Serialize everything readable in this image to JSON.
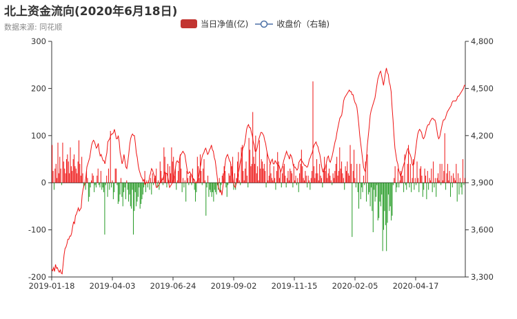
{
  "header": {
    "title": "北上资金流向(2020年6月18日)",
    "subtitle": "数据来源: 同花顺"
  },
  "legend": [
    {
      "label": "当日净值(亿)",
      "color": "#c23531",
      "kind": "bar"
    },
    {
      "label": "收盘价（右轴)",
      "color": "#4a6fa5",
      "kind": "line"
    }
  ],
  "chart_data": {
    "type": "bar+line",
    "title": "北上资金流向(2020年6月18日)",
    "x_tick_labels": [
      "2019-01-18",
      "2019-04-03",
      "2019-06-24",
      "2019-09-02",
      "2019-11-15",
      "2020-02-05",
      "2020-04-17"
    ],
    "x_range": [
      "2019-01-18",
      "2020-06-18"
    ],
    "left_axis": {
      "ylim": [
        -200,
        300
      ],
      "ticks": [
        -200,
        -100,
        0,
        100,
        200,
        300
      ]
    },
    "right_axis": {
      "ylim": [
        3300,
        4800
      ],
      "ticks": [
        "3,300",
        "3,600",
        "3,900",
        "4,200",
        "4,500",
        "4,800"
      ]
    },
    "positive_color": "#ee1111",
    "negative_color": "#229922",
    "close_line_color": "#ee1111",
    "series": [
      {
        "name": "当日净值(亿)",
        "axis": "left",
        "values": [
          80,
          25,
          -15,
          30,
          40,
          10,
          85,
          20,
          55,
          30,
          -5,
          85,
          45,
          30,
          20,
          50,
          60,
          45,
          20,
          75,
          35,
          25,
          50,
          60,
          35,
          30,
          20,
          45,
          90,
          40,
          15,
          55,
          20,
          -10,
          -5,
          -15,
          25,
          10,
          -40,
          -30,
          -10,
          5,
          20,
          15,
          -20,
          -5,
          -10,
          15,
          30,
          -5,
          -10,
          25,
          -15,
          -10,
          -20,
          -110,
          -5,
          15,
          -30,
          30,
          -15,
          110,
          -10,
          5,
          -35,
          -20,
          30,
          30,
          -5,
          -45,
          -40,
          -25,
          10,
          -30,
          -50,
          -20,
          -10,
          -35,
          5,
          -15,
          -40,
          -25,
          -50,
          -55,
          -15,
          -110,
          -60,
          -20,
          -50,
          -40,
          -30,
          -10,
          -55,
          -45,
          -35,
          -25,
          -10,
          25,
          -20,
          5,
          -10,
          5,
          -15,
          10,
          -25,
          20,
          -5,
          10,
          15,
          30,
          -10,
          5,
          -15,
          45,
          25,
          10,
          -5,
          75,
          55,
          20,
          -10,
          40,
          5,
          35,
          20,
          75,
          45,
          55,
          15,
          30,
          -15,
          5,
          25,
          45,
          60,
          30,
          -20,
          10,
          -10,
          5,
          -40,
          25,
          10,
          -5,
          15,
          20,
          -5,
          30,
          10,
          -15,
          -40,
          -20,
          55,
          35,
          10,
          60,
          25,
          -5,
          30,
          50,
          5,
          -70,
          -10,
          15,
          -30,
          -15,
          -20,
          -30,
          -20,
          -40,
          -15,
          -20,
          -25,
          -5,
          -15,
          10,
          -20,
          -5,
          15,
          20,
          35,
          25,
          -10,
          -30,
          -5,
          20,
          15,
          40,
          35,
          55,
          -15,
          20,
          -15,
          10,
          45,
          65,
          5,
          -5,
          75,
          80,
          25,
          5,
          30,
          45,
          15,
          -10,
          95,
          70,
          35,
          40,
          150,
          55,
          40,
          100,
          20,
          35,
          5,
          90,
          30,
          50,
          45,
          30,
          40,
          25,
          -10,
          65,
          5,
          15,
          40,
          20,
          10,
          5,
          35,
          10,
          -15,
          25,
          65,
          45,
          10,
          25,
          -10,
          20,
          35,
          40,
          15,
          -10,
          10,
          25,
          5,
          30,
          25,
          20,
          -10,
          40,
          5,
          15,
          -5,
          10,
          -20,
          20,
          40,
          70,
          35,
          10,
          5,
          25,
          15,
          -10,
          15,
          5,
          -15,
          10,
          25,
          215,
          35,
          10,
          20,
          50,
          20,
          5,
          40,
          15,
          10,
          -10,
          30,
          55,
          25,
          40,
          10,
          20,
          30,
          15,
          5,
          -5,
          20,
          10,
          25,
          40,
          55,
          15,
          25,
          75,
          30,
          45,
          20,
          10,
          -15,
          35,
          25,
          45,
          20,
          15,
          80,
          40,
          -115,
          25,
          70,
          10,
          -10,
          40,
          -20,
          -55,
          40,
          -35,
          -10,
          -20,
          15,
          -5,
          45,
          -40,
          60,
          -25,
          -20,
          -50,
          -10,
          -60,
          -105,
          -15,
          -40,
          -30,
          -5,
          -80,
          -75,
          -40,
          -50,
          -25,
          -145,
          -100,
          -60,
          -90,
          -145,
          -85,
          -25,
          -60,
          -50,
          -80,
          -70,
          -5,
          10,
          35,
          -20,
          -10,
          30,
          -10,
          5,
          25,
          15,
          15,
          -20,
          60,
          -5,
          -15,
          40,
          80,
          -10,
          40,
          -20,
          10,
          50,
          -15,
          10,
          -5,
          45,
          10,
          -20,
          30,
          35,
          15,
          -30,
          -15,
          30,
          15,
          -35,
          25,
          -15,
          10,
          5,
          30,
          -20,
          45,
          -10,
          10,
          -30,
          10,
          20,
          5,
          40,
          -5,
          40,
          5,
          25,
          105,
          -15,
          20,
          40,
          5,
          25,
          -30,
          15,
          -10,
          20,
          10,
          5,
          40,
          -40,
          20,
          -25,
          10,
          -10,
          -25,
          50,
          -5,
          10
        ]
      },
      {
        "name": "收盘价（右轴)",
        "axis": "right",
        "values": [
          3350,
          3340,
          3360,
          3335,
          3380,
          3355,
          3360,
          3340,
          3330,
          3345,
          3325,
          3320,
          3380,
          3440,
          3480,
          3490,
          3510,
          3540,
          3540,
          3560,
          3560,
          3580,
          3620,
          3650,
          3640,
          3690,
          3700,
          3720,
          3740,
          3720,
          3730,
          3740,
          3820,
          3860,
          3880,
          3900,
          3940,
          4000,
          4020,
          4040,
          4060,
          4100,
          4140,
          4160,
          4170,
          4160,
          4140,
          4120,
          4130,
          4150,
          4100,
          4070,
          4080,
          4060,
          4040,
          4040,
          4020,
          4060,
          4090,
          4160,
          4170,
          4180,
          4200,
          4210,
          4210,
          4220,
          4240,
          4210,
          4180,
          4180,
          4200,
          4160,
          4090,
          4060,
          4020,
          4040,
          4080,
          4040,
          4000,
          3990,
          4030,
          4080,
          4140,
          4180,
          4200,
          4210,
          4200,
          4200,
          4150,
          4090,
          4060,
          4010,
          3980,
          3960,
          3940,
          3930,
          3910,
          3920,
          3890,
          3900,
          3900,
          3900,
          3900,
          3940,
          3960,
          3990,
          3980,
          3960,
          3940,
          3900,
          3870,
          3870,
          3880,
          3890,
          3900,
          3910,
          3920,
          3920,
          3950,
          3970,
          3960,
          3960,
          3940,
          3900,
          3870,
          3880,
          3890,
          3900,
          3920,
          3950,
          3990,
          4030,
          4040,
          4030,
          4030,
          4070,
          4080,
          4090,
          4100,
          4090,
          4080,
          4040,
          4000,
          3960,
          3960,
          3970,
          3960,
          3950,
          3930,
          3920,
          3920,
          3900,
          3900,
          3910,
          3920,
          3950,
          3990,
          4020,
          4060,
          4080,
          4090,
          4110,
          4120,
          4100,
          4080,
          4090,
          4110,
          4120,
          4140,
          4110,
          4100,
          4060,
          4040,
          3990,
          3940,
          3880,
          3860,
          3840,
          3850,
          3820,
          3870,
          3920,
          4000,
          4050,
          4070,
          4080,
          4060,
          4040,
          4030,
          3990,
          3950,
          3910,
          3880,
          3870,
          3890,
          3920,
          3950,
          3980,
          4020,
          4050,
          4080,
          4120,
          4130,
          4150,
          4190,
          4240,
          4260,
          4270,
          4250,
          4250,
          4220,
          4200,
          4160,
          4140,
          4100,
          4100,
          4120,
          4150,
          4180,
          4200,
          4220,
          4220,
          4210,
          4200,
          4170,
          4150,
          4110,
          4080,
          4060,
          4040,
          4020,
          4040,
          4050,
          4020,
          4020,
          4040,
          4030,
          4020,
          4010,
          4010,
          3990,
          3970,
          3990,
          4010,
          4040,
          4060,
          4080,
          4100,
          4080,
          4070,
          4050,
          4080,
          4070,
          4050,
          4010,
          4000,
          4000,
          3990,
          3980,
          3990,
          4030,
          4040,
          4050,
          4040,
          4030,
          4020,
          4010,
          4010,
          4000,
          4000,
          4020,
          4050,
          4060,
          4080,
          4090,
          4120,
          4140,
          4150,
          4160,
          4140,
          4130,
          4100,
          4080,
          4040,
          4000,
          3970,
          3970,
          3980,
          4000,
          4030,
          4060,
          4070,
          4040,
          4030,
          4050,
          4070,
          4100,
          4130,
          4160,
          4180,
          4220,
          4250,
          4280,
          4310,
          4320,
          4330,
          4370,
          4420,
          4440,
          4450,
          4460,
          4470,
          4480,
          4490,
          4480,
          4480,
          4460,
          4460,
          4430,
          4410,
          4400,
          4380,
          4330,
          4270,
          4200,
          4150,
          4100,
          4050,
          4000,
          3980,
          3970,
          4050,
          4140,
          4200,
          4260,
          4330,
          4360,
          4380,
          4400,
          4420,
          4440,
          4480,
          4520,
          4560,
          4580,
          4600,
          4610,
          4580,
          4550,
          4520,
          4560,
          4600,
          4630,
          4600,
          4590,
          4540,
          4520,
          4480,
          4380,
          4300,
          4200,
          4120,
          4080,
          4040,
          4020,
          3980,
          3960,
          3940,
          3960,
          3990,
          4010,
          4030,
          4060,
          4090,
          4110,
          4120,
          4090,
          4080,
          4060,
          4020,
          4010,
          4020,
          4070,
          4120,
          4170,
          4210,
          4230,
          4240,
          4230,
          4220,
          4190,
          4180,
          4190,
          4210,
          4240,
          4260,
          4270,
          4270,
          4290,
          4300,
          4310,
          4310,
          4300,
          4300,
          4280,
          4240,
          4200,
          4180,
          4190,
          4220,
          4250,
          4280,
          4300,
          4300,
          4310,
          4330,
          4350,
          4360,
          4370,
          4380,
          4390,
          4410,
          4420,
          4420,
          4420,
          4420,
          4430,
          4450,
          4450,
          4460,
          4470,
          4480,
          4490,
          4500,
          4520,
          4520
        ]
      }
    ]
  }
}
